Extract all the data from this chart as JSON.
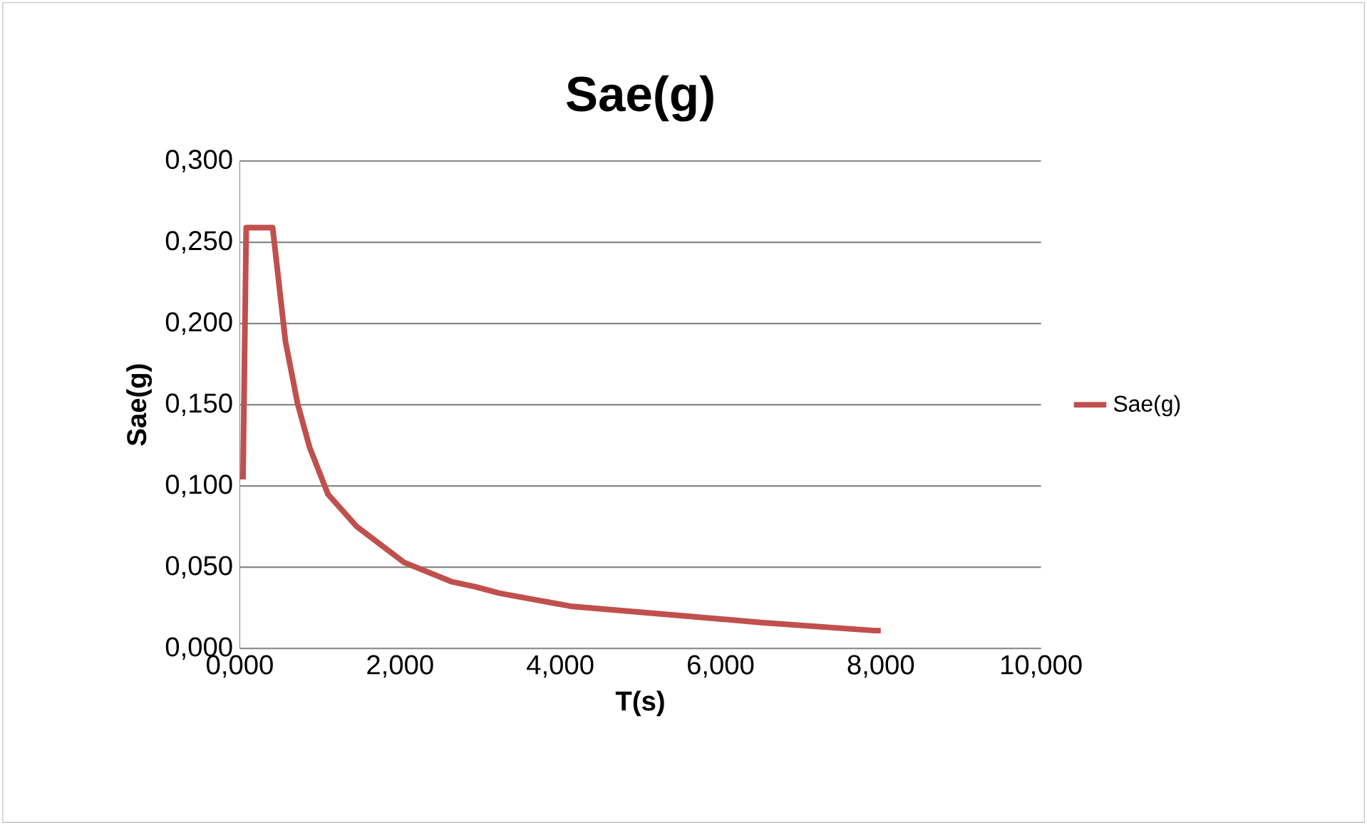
{
  "chart_data": {
    "type": "line",
    "title": "Sae(g)",
    "xlabel": "T(s)",
    "ylabel": "Sae(g)",
    "xlim": [
      0,
      10
    ],
    "xticks": [
      {
        "value": 0,
        "label": "0,000"
      },
      {
        "value": 2,
        "label": "2,000"
      },
      {
        "value": 4,
        "label": "4,000"
      },
      {
        "value": 6,
        "label": "6,000"
      },
      {
        "value": 8,
        "label": "8,000"
      },
      {
        "value": 10,
        "label": "10,000"
      }
    ],
    "ylim": [
      0,
      0.3
    ],
    "yticks": [
      {
        "value": 0,
        "label": "0,000"
      },
      {
        "value": 0.05,
        "label": "0,050"
      },
      {
        "value": 0.1,
        "label": "0,100"
      },
      {
        "value": 0.15,
        "label": "0,150"
      },
      {
        "value": 0.2,
        "label": "0,200"
      },
      {
        "value": 0.25,
        "label": "0,250"
      },
      {
        "value": 0.3,
        "label": "0,300"
      }
    ],
    "grid": "y",
    "legend": "right",
    "marker": "none",
    "line_style": "solid",
    "series": [
      {
        "name": "Sae(g)",
        "color": "#c0504d",
        "x": [
          0.04,
          0.08,
          0.41,
          0.57,
          0.72,
          0.87,
          1.1,
          1.46,
          2.05,
          2.65,
          2.94,
          3.24,
          4.13,
          5.31,
          6.5,
          7.92,
          8.0
        ],
        "values": [
          0.104,
          0.259,
          0.259,
          0.189,
          0.151,
          0.124,
          0.095,
          0.075,
          0.053,
          0.041,
          0.038,
          0.034,
          0.026,
          0.021,
          0.016,
          0.011,
          0.011
        ]
      }
    ]
  }
}
